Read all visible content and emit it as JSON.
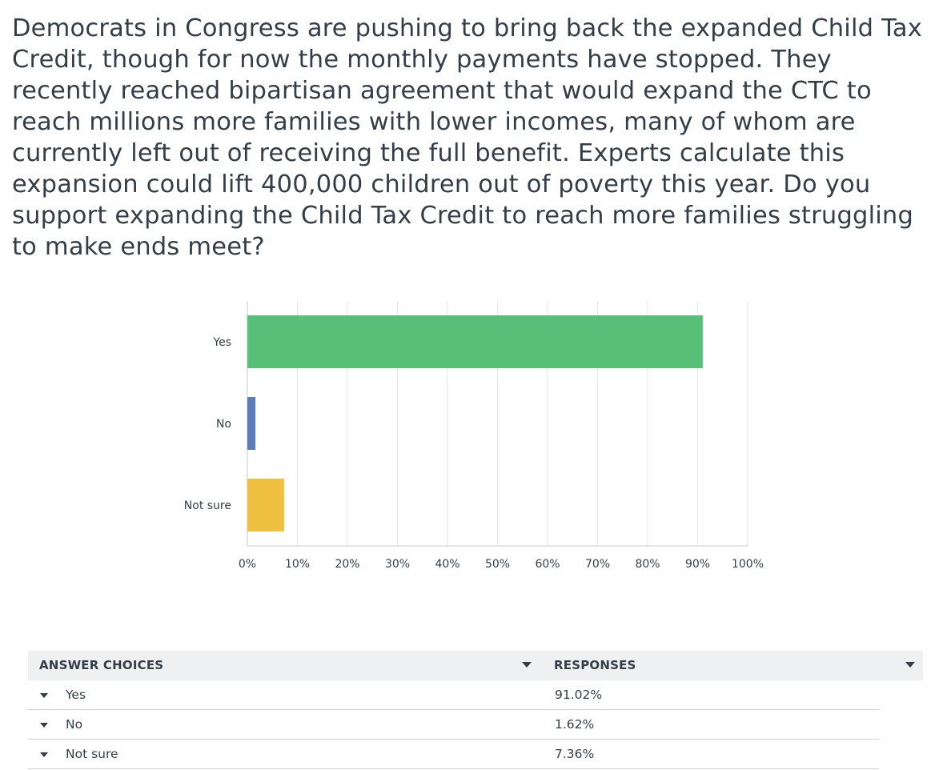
{
  "question": "Democrats in Congress are pushing to bring back the expanded Child Tax Credit, though for now the monthly payments have stopped. They recently reached bipartisan agreement that would expand the CTC to reach millions more families with lower incomes, many of whom are currently left out of receiving the full benefit. Experts calculate this expansion could lift 400,000 children out of poverty this year. Do you support expanding the Child Tax Credit to reach more families struggling to make ends meet?",
  "chart_data": {
    "type": "bar",
    "orientation": "horizontal",
    "categories": [
      "Yes",
      "No",
      "Not sure"
    ],
    "values": [
      91.02,
      1.62,
      7.36
    ],
    "colors": [
      "#57bf76",
      "#5b7db8",
      "#f0c140"
    ],
    "xlim": [
      0,
      100
    ],
    "x_ticks": [
      "0%",
      "10%",
      "20%",
      "30%",
      "40%",
      "50%",
      "60%",
      "70%",
      "80%",
      "90%",
      "100%"
    ],
    "grid": true,
    "title": "",
    "xlabel": "",
    "ylabel": ""
  },
  "table": {
    "headers": {
      "choices": "ANSWER CHOICES",
      "responses": "RESPONSES"
    },
    "rows": [
      {
        "choice": "Yes",
        "response": "91.02%"
      },
      {
        "choice": "No",
        "response": "1.62%"
      },
      {
        "choice": "Not sure",
        "response": "7.36%"
      }
    ]
  },
  "icons": {
    "sort": "chevron-down-icon",
    "expand": "caret-down-icon"
  }
}
